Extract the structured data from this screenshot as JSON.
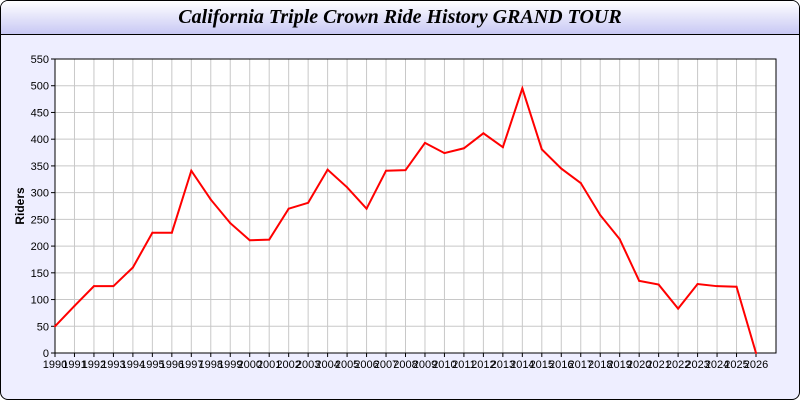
{
  "chart_data": {
    "type": "line",
    "title": "California Triple Crown Ride History GRAND TOUR",
    "xlabel": "",
    "ylabel": "Riders",
    "xlim": [
      1990,
      2027
    ],
    "ylim": [
      0,
      550
    ],
    "yticks": [
      0,
      50,
      100,
      150,
      200,
      250,
      300,
      350,
      400,
      450,
      500,
      550
    ],
    "grid": true,
    "line_color": "#ff0000",
    "x": [
      1990,
      1991,
      1992,
      1993,
      1994,
      1995,
      1996,
      1997,
      1998,
      1999,
      2000,
      2001,
      2002,
      2003,
      2004,
      2005,
      2006,
      2007,
      2008,
      2009,
      2010,
      2011,
      2012,
      2013,
      2014,
      2015,
      2016,
      2017,
      2018,
      2019,
      2020,
      2021,
      2022,
      2023,
      2024,
      2025,
      2026
    ],
    "series": [
      {
        "values": [
          50,
          88,
          125,
          125,
          160,
          225,
          225,
          341,
          287,
          243,
          211,
          212,
          270,
          281,
          343,
          310,
          270,
          341,
          342,
          393,
          374,
          383,
          411,
          385,
          495,
          381,
          345,
          318,
          258,
          213,
          135,
          128,
          83,
          129,
          125,
          124,
          0
        ]
      }
    ]
  }
}
